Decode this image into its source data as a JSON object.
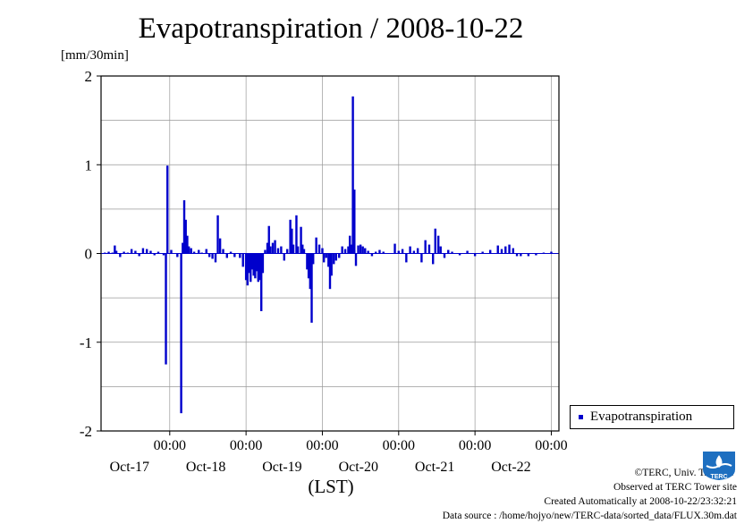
{
  "chart_data": {
    "type": "bar",
    "title": "Evapotranspiration / 2008-10-22",
    "ylabel": "[mm/30min]",
    "xlabel": "(LST)",
    "ylim": [
      -2,
      2
    ],
    "y_ticks": [
      "2",
      "1",
      "0",
      "-1",
      "-2"
    ],
    "x_ticks": [
      {
        "time": "00:00",
        "date": "Oct-17"
      },
      {
        "time": "00:00",
        "date": "Oct-18"
      },
      {
        "time": "00:00",
        "date": "Oct-19"
      },
      {
        "time": "00:00",
        "date": "Oct-20"
      },
      {
        "time": "00:00",
        "date": "Oct-21"
      },
      {
        "time": "00:00",
        "date": "Oct-22"
      }
    ],
    "x_range_days": [
      -0.9,
      5.1
    ],
    "grid": true,
    "legend_position": "right",
    "series": [
      {
        "name": "Evapotranspiration",
        "color": "#0000cc",
        "points": [
          [
            -0.85,
            0.01
          ],
          [
            -0.8,
            0.02
          ],
          [
            -0.75,
            0.01
          ],
          [
            -0.72,
            0.09
          ],
          [
            -0.7,
            0.03
          ],
          [
            -0.65,
            -0.04
          ],
          [
            -0.6,
            0.02
          ],
          [
            -0.55,
            0.01
          ],
          [
            -0.5,
            0.05
          ],
          [
            -0.45,
            0.03
          ],
          [
            -0.4,
            -0.03
          ],
          [
            -0.35,
            0.06
          ],
          [
            -0.3,
            0.05
          ],
          [
            -0.25,
            0.03
          ],
          [
            -0.2,
            -0.02
          ],
          [
            -0.15,
            0.02
          ],
          [
            -0.08,
            -0.02
          ],
          [
            -0.05,
            -1.25
          ],
          [
            -0.03,
            0.99
          ],
          [
            0.02,
            0.04
          ],
          [
            0.1,
            -0.04
          ],
          [
            0.15,
            -1.8
          ],
          [
            0.17,
            0.12
          ],
          [
            0.19,
            0.6
          ],
          [
            0.21,
            0.38
          ],
          [
            0.23,
            0.2
          ],
          [
            0.25,
            0.08
          ],
          [
            0.28,
            0.06
          ],
          [
            0.32,
            0.02
          ],
          [
            0.38,
            0.04
          ],
          [
            0.42,
            0.01
          ],
          [
            0.48,
            0.05
          ],
          [
            0.52,
            -0.04
          ],
          [
            0.56,
            -0.06
          ],
          [
            0.6,
            -0.1
          ],
          [
            0.63,
            0.43
          ],
          [
            0.66,
            0.17
          ],
          [
            0.7,
            0.05
          ],
          [
            0.75,
            -0.05
          ],
          [
            0.8,
            0.02
          ],
          [
            0.85,
            -0.04
          ],
          [
            0.92,
            -0.05
          ],
          [
            0.96,
            -0.15
          ],
          [
            1.0,
            -0.3
          ],
          [
            1.02,
            -0.36
          ],
          [
            1.04,
            -0.22
          ],
          [
            1.06,
            -0.32
          ],
          [
            1.08,
            -0.18
          ],
          [
            1.1,
            -0.25
          ],
          [
            1.12,
            -0.28
          ],
          [
            1.14,
            -0.2
          ],
          [
            1.16,
            -0.32
          ],
          [
            1.18,
            -0.3
          ],
          [
            1.2,
            -0.65
          ],
          [
            1.22,
            -0.22
          ],
          [
            1.25,
            0.04
          ],
          [
            1.28,
            0.12
          ],
          [
            1.3,
            0.31
          ],
          [
            1.32,
            0.08
          ],
          [
            1.35,
            0.12
          ],
          [
            1.38,
            0.15
          ],
          [
            1.42,
            0.06
          ],
          [
            1.46,
            0.08
          ],
          [
            1.5,
            -0.08
          ],
          [
            1.54,
            0.05
          ],
          [
            1.58,
            0.38
          ],
          [
            1.6,
            0.28
          ],
          [
            1.62,
            0.1
          ],
          [
            1.66,
            0.43
          ],
          [
            1.68,
            0.08
          ],
          [
            1.72,
            0.3
          ],
          [
            1.74,
            0.1
          ],
          [
            1.76,
            0.05
          ],
          [
            1.8,
            -0.18
          ],
          [
            1.82,
            -0.28
          ],
          [
            1.84,
            -0.4
          ],
          [
            1.86,
            -0.78
          ],
          [
            1.88,
            -0.12
          ],
          [
            1.92,
            0.18
          ],
          [
            1.96,
            0.1
          ],
          [
            2.0,
            0.06
          ],
          [
            2.02,
            -0.1
          ],
          [
            2.05,
            -0.05
          ],
          [
            2.08,
            -0.15
          ],
          [
            2.1,
            -0.4
          ],
          [
            2.12,
            -0.25
          ],
          [
            2.15,
            -0.12
          ],
          [
            2.18,
            -0.08
          ],
          [
            2.22,
            -0.05
          ],
          [
            2.26,
            0.08
          ],
          [
            2.3,
            0.05
          ],
          [
            2.34,
            0.08
          ],
          [
            2.36,
            0.2
          ],
          [
            2.38,
            0.1
          ],
          [
            2.4,
            1.77
          ],
          [
            2.42,
            0.72
          ],
          [
            2.44,
            -0.14
          ],
          [
            2.47,
            0.09
          ],
          [
            2.5,
            0.1
          ],
          [
            2.53,
            0.08
          ],
          [
            2.56,
            0.06
          ],
          [
            2.6,
            0.03
          ],
          [
            2.65,
            -0.03
          ],
          [
            2.7,
            0.02
          ],
          [
            2.75,
            0.04
          ],
          [
            2.8,
            0.02
          ],
          [
            2.95,
            0.11
          ],
          [
            3.0,
            0.03
          ],
          [
            3.05,
            0.05
          ],
          [
            3.1,
            -0.1
          ],
          [
            3.15,
            0.08
          ],
          [
            3.2,
            0.03
          ],
          [
            3.25,
            0.06
          ],
          [
            3.3,
            -0.1
          ],
          [
            3.35,
            0.15
          ],
          [
            3.4,
            0.1
          ],
          [
            3.45,
            -0.12
          ],
          [
            3.48,
            0.28
          ],
          [
            3.52,
            0.2
          ],
          [
            3.55,
            0.08
          ],
          [
            3.6,
            -0.05
          ],
          [
            3.65,
            0.04
          ],
          [
            3.7,
            0.02
          ],
          [
            3.8,
            -0.02
          ],
          [
            3.9,
            0.03
          ],
          [
            4.0,
            -0.03
          ],
          [
            4.1,
            0.02
          ],
          [
            4.2,
            0.04
          ],
          [
            4.3,
            0.09
          ],
          [
            4.35,
            0.05
          ],
          [
            4.4,
            0.08
          ],
          [
            4.45,
            0.1
          ],
          [
            4.5,
            0.06
          ],
          [
            4.55,
            -0.03
          ],
          [
            4.6,
            -0.03
          ],
          [
            4.7,
            -0.03
          ],
          [
            4.8,
            -0.02
          ],
          [
            4.9,
            0.01
          ],
          [
            5.0,
            0.02
          ]
        ]
      }
    ]
  },
  "credits": {
    "copyright": "©TERC, Univ. Tsukuba",
    "site": "Observed at TERC Tower site",
    "created": "Created Automatically at 2008-10-22/23:32:21",
    "source": "Data source : /home/hojyo/new/TERC-data/sorted_data/FLUX.30m.dat"
  },
  "logo_text": "TERC"
}
